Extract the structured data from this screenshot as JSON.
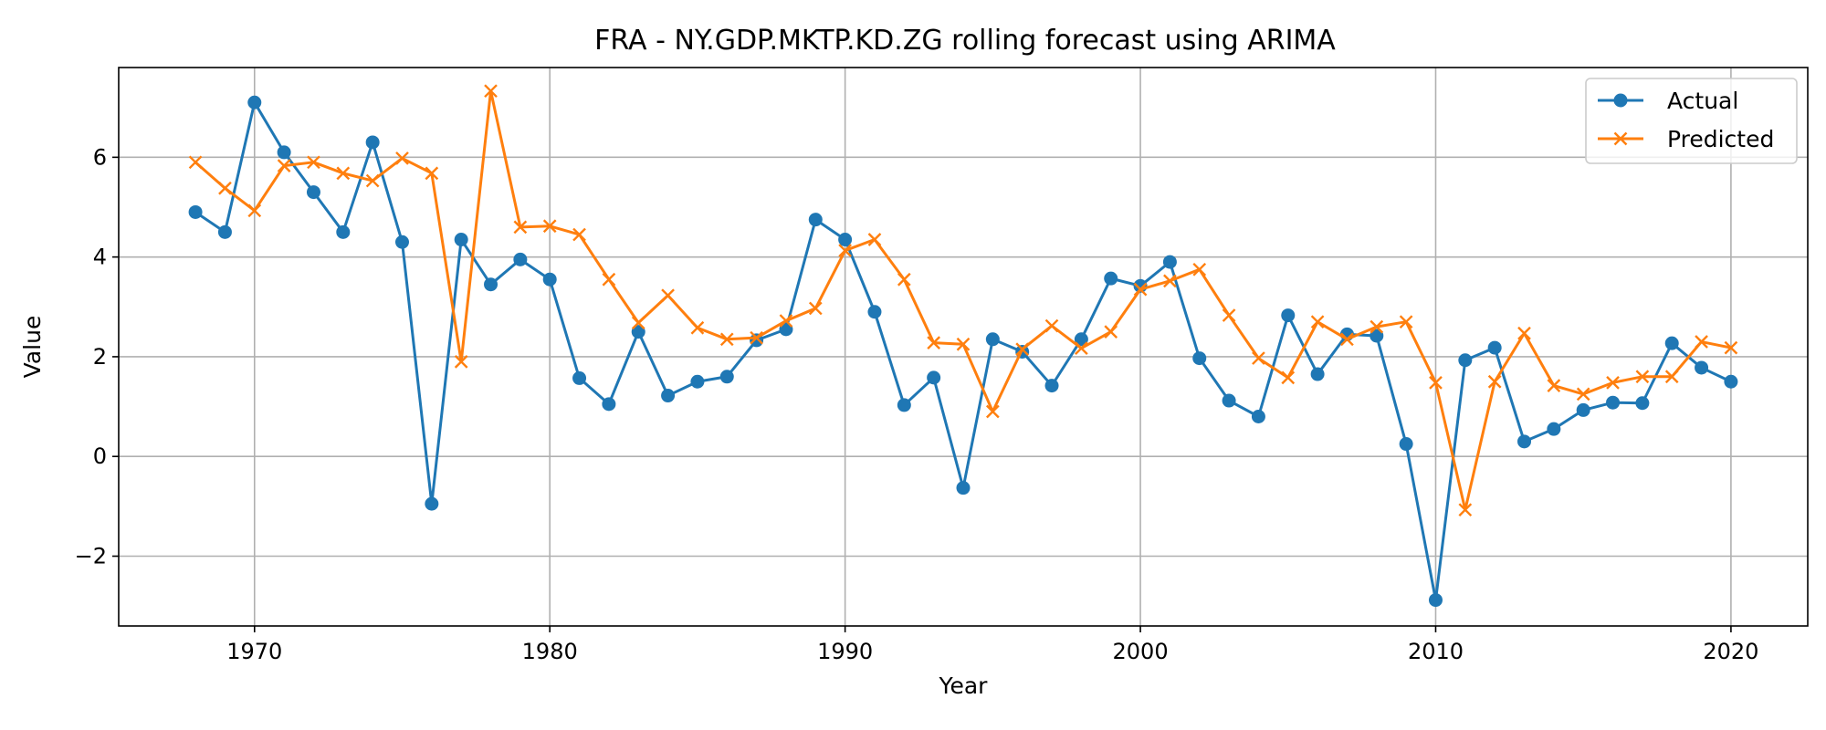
{
  "chart_data": {
    "type": "line",
    "title": "FRA - NY.GDP.MKTP.KD.ZG rolling forecast using ARIMA",
    "xlabel": "Year",
    "ylabel": "Value",
    "xlim": [
      1965.4,
      2022.6
    ],
    "ylim": [
      -3.4,
      7.8
    ],
    "x_ticks": [
      1970,
      1980,
      1990,
      2000,
      2010,
      2020
    ],
    "y_ticks": [
      -2,
      0,
      2,
      4,
      6
    ],
    "y_tick_labels": [
      "−2",
      "0",
      "2",
      "4",
      "6"
    ],
    "grid": true,
    "legend_position": "top-right",
    "x": [
      1968,
      1969,
      1970,
      1971,
      1972,
      1973,
      1974,
      1975,
      1976,
      1977,
      1978,
      1979,
      1980,
      1981,
      1982,
      1983,
      1984,
      1985,
      1986,
      1987,
      1988,
      1989,
      1990,
      1991,
      1992,
      1993,
      1994,
      1995,
      1996,
      1997,
      1998,
      1999,
      2000,
      2001,
      2002,
      2003,
      2004,
      2005,
      2006,
      2007,
      2008,
      2009,
      2010,
      2011,
      2012,
      2013,
      2014,
      2015,
      2016,
      2017,
      2018,
      2019,
      2020
    ],
    "series": [
      {
        "name": "Actual",
        "color": "#1f77b4",
        "marker": "circle",
        "values": [
          4.9,
          4.5,
          7.1,
          6.1,
          5.3,
          4.5,
          6.3,
          4.3,
          -0.95,
          4.35,
          3.45,
          3.95,
          3.55,
          1.57,
          1.05,
          2.5,
          1.22,
          1.5,
          1.6,
          2.33,
          2.55,
          4.75,
          4.35,
          2.9,
          1.03,
          1.58,
          -0.63,
          2.35,
          2.1,
          1.42,
          2.35,
          3.57,
          3.42,
          3.9,
          1.97,
          1.12,
          0.8,
          2.83,
          1.65,
          2.45,
          2.42,
          0.25,
          -2.88,
          1.93,
          2.18,
          0.3,
          0.55,
          0.93,
          1.08,
          1.07,
          2.27,
          1.78,
          1.5
        ]
      },
      {
        "name": "Predicted",
        "color": "#ff7f0e",
        "marker": "x",
        "values": [
          5.9,
          5.38,
          4.93,
          5.83,
          5.9,
          5.68,
          5.53,
          5.98,
          5.68,
          1.9,
          7.33,
          4.6,
          4.62,
          4.45,
          3.55,
          2.68,
          3.23,
          2.58,
          2.35,
          2.38,
          2.72,
          2.97,
          4.13,
          4.35,
          3.55,
          2.28,
          2.25,
          0.9,
          2.15,
          2.62,
          2.17,
          2.5,
          3.35,
          3.52,
          3.75,
          2.83,
          1.97,
          1.58,
          2.7,
          2.35,
          2.6,
          2.7,
          1.48,
          -1.07,
          1.5,
          2.47,
          1.42,
          1.25,
          1.48,
          1.6,
          1.6,
          2.3,
          2.18
        ]
      }
    ]
  }
}
